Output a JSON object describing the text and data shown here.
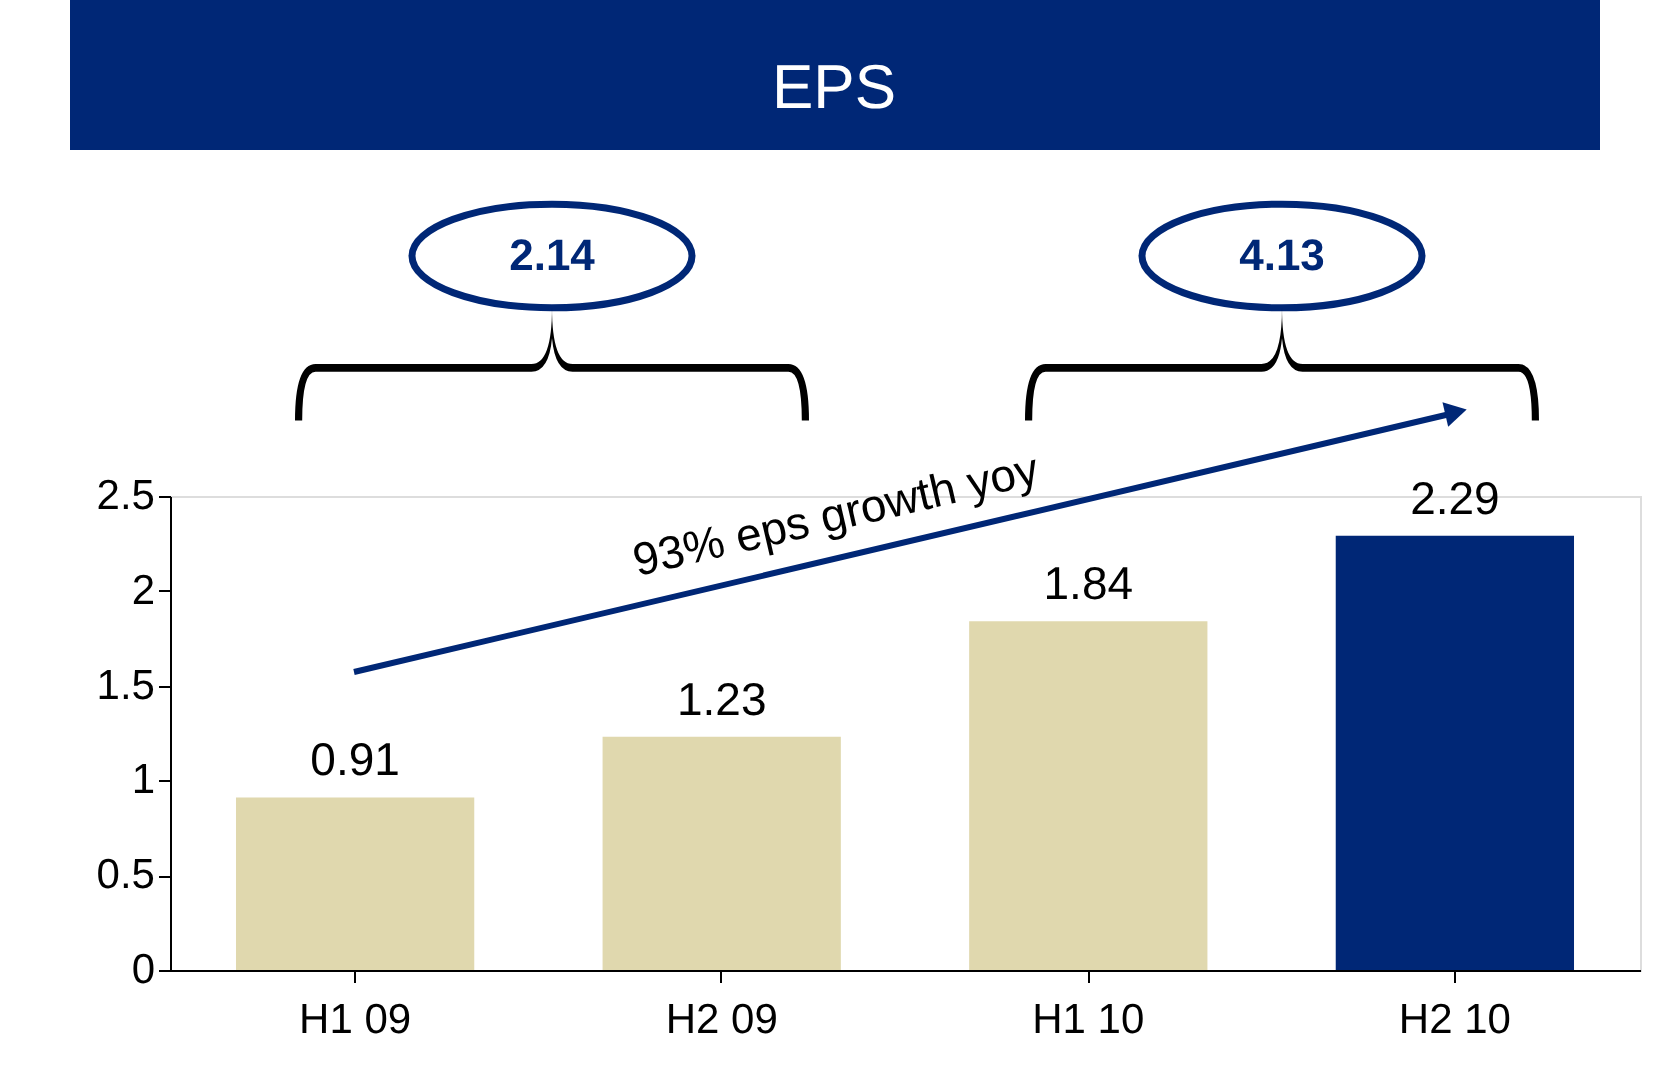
{
  "chart_data": {
    "type": "bar",
    "title": "EPS",
    "categories": [
      "H1 09",
      "H2 09",
      "H1 10",
      "H2 10"
    ],
    "values": [
      0.91,
      1.23,
      1.84,
      2.29
    ],
    "colors": [
      "#e0d8ae",
      "#e0d8ae",
      "#e0d8ae",
      "#002776"
    ],
    "ylim": [
      0,
      2.5
    ],
    "yticks": [
      0,
      0.5,
      1,
      1.5,
      2,
      2.5
    ],
    "data_labels": true,
    "annotations": [
      "2.14",
      "4.13",
      "93% eps growth yoy"
    ]
  }
}
